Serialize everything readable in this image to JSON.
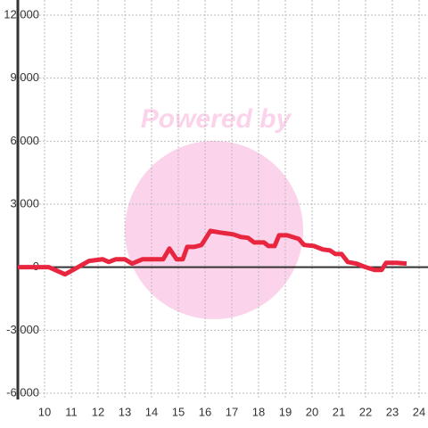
{
  "chart_data": {
    "type": "line",
    "watermark": "Powered by",
    "series": [
      {
        "color": "#e8263f",
        "x": [
          9,
          10,
          10.167,
          10.767,
          11.667,
          12.167,
          12.4,
          12.667,
          13,
          13.267,
          13.667,
          14.267,
          14.433,
          14.667,
          14.933,
          15.167,
          15.333,
          15.6,
          15.733,
          15.867,
          16.2,
          16.567,
          17.067,
          17.333,
          17.6,
          17.833,
          18.2,
          18.367,
          18.6,
          18.767,
          19.067,
          19.5,
          19.7,
          20.067,
          20.4,
          20.667,
          20.867,
          21.1,
          21.333,
          21.667,
          22,
          22.333,
          22.6,
          22.767,
          23.167,
          23.533
        ],
        "values": [
          0,
          0,
          0,
          -340,
          300,
          380,
          250,
          380,
          380,
          170,
          380,
          380,
          380,
          890,
          380,
          380,
          970,
          970,
          1010,
          1060,
          1730,
          1650,
          1560,
          1440,
          1400,
          1180,
          1180,
          1010,
          1010,
          1520,
          1520,
          1350,
          1060,
          1010,
          845,
          800,
          630,
          630,
          250,
          170,
          0,
          -130,
          -130,
          210,
          210,
          170
        ]
      }
    ],
    "xlim": [
      9,
      24.333
    ],
    "xticks": [
      10,
      11,
      12,
      13,
      14,
      15,
      16,
      17,
      18,
      19,
      20,
      21,
      22,
      23,
      24
    ],
    "ylim": [
      -6000,
      12000
    ],
    "yticks": [
      {
        "value": -6000,
        "label": "-6,000"
      },
      {
        "value": -3000,
        "label": "-3,000"
      },
      0,
      {
        "value": 3000,
        "label": "3,000"
      },
      {
        "value": 6000,
        "label": "6,000"
      },
      {
        "value": 9000,
        "label": "9,000"
      },
      {
        "value": 12000,
        "label": "12,000"
      }
    ],
    "grid": true
  }
}
